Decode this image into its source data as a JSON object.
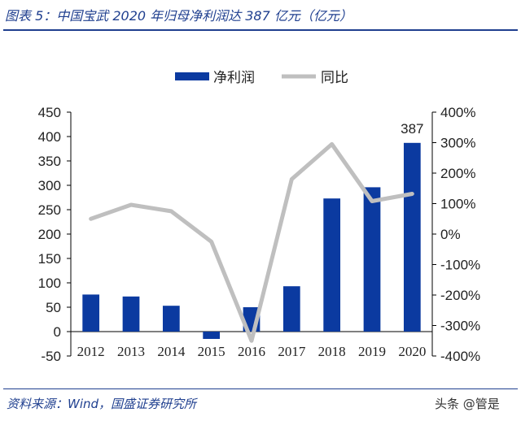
{
  "header": {
    "title": "图表 5：中国宝武 2020 年归母净利润达 387 亿元（亿元）"
  },
  "footer": {
    "source": "资料来源：Wind，国盛证券研究所",
    "watermark": "头条 @管是"
  },
  "colors": {
    "bar": "#0b3aa0",
    "line": "#bfbfbf",
    "title": "#1f3f8f"
  },
  "chart_data": {
    "type": "bar",
    "title": "",
    "categories": [
      "2012",
      "2013",
      "2014",
      "2015",
      "2016",
      "2017",
      "2018",
      "2019",
      "2020"
    ],
    "series": [
      {
        "name": "净利润",
        "type": "bar",
        "axis": "left",
        "values": [
          76,
          72,
          53,
          -15,
          50,
          93,
          273,
          296,
          387
        ]
      },
      {
        "name": "同比",
        "type": "line",
        "axis": "right",
        "values": [
          50,
          96,
          75,
          -25,
          -350,
          180,
          295,
          108,
          132
        ],
        "unit": "%"
      }
    ],
    "data_labels": [
      {
        "category": "2020",
        "series": "净利润",
        "text": "387"
      }
    ],
    "y_left": {
      "range": [
        -50,
        450
      ],
      "ticks": [
        "450",
        "400",
        "350",
        "300",
        "250",
        "200",
        "150",
        "100",
        "50",
        "0",
        "-50"
      ],
      "tick_values": [
        450,
        400,
        350,
        300,
        250,
        200,
        150,
        100,
        50,
        0,
        -50
      ]
    },
    "y_right": {
      "range": [
        -400,
        400
      ],
      "ticks": [
        "400%",
        "300%",
        "200%",
        "100%",
        "0%",
        "-100%",
        "-200%",
        "-300%",
        "-400%"
      ],
      "tick_values": [
        400,
        300,
        200,
        100,
        0,
        -100,
        -200,
        -300,
        -400
      ]
    },
    "legend": {
      "position": "top-center"
    },
    "grid": false
  }
}
